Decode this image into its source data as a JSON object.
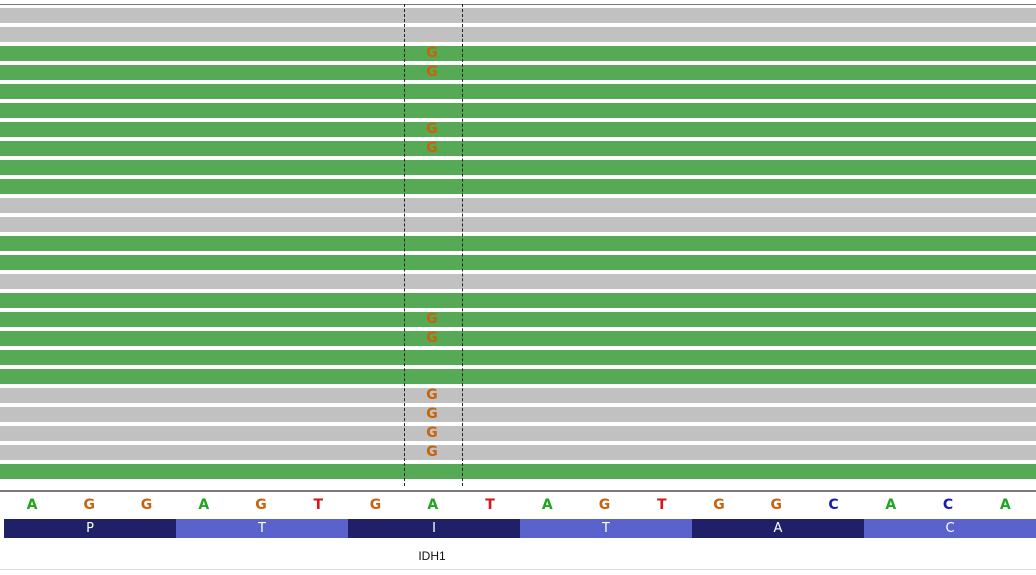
{
  "colors": {
    "read_gray": "#c1c1c1",
    "read_green": "#56aa56",
    "mismatch": "#c8620b",
    "base_A": "#1fa61f",
    "base_G": "#c8620b",
    "base_T": "#d01818",
    "base_C": "#1c1caa",
    "codon_dark": "#202068",
    "codon_light": "#5a62cc"
  },
  "reads": [
    {
      "color": "gray"
    },
    {
      "color": "gray"
    },
    {
      "color": "green",
      "mismatch": "G"
    },
    {
      "color": "green",
      "mismatch": "G"
    },
    {
      "color": "green"
    },
    {
      "color": "green"
    },
    {
      "color": "green",
      "mismatch": "G"
    },
    {
      "color": "green",
      "mismatch": "G"
    },
    {
      "color": "green"
    },
    {
      "color": "green"
    },
    {
      "color": "gray"
    },
    {
      "color": "gray"
    },
    {
      "color": "green"
    },
    {
      "color": "green"
    },
    {
      "color": "gray"
    },
    {
      "color": "green"
    },
    {
      "color": "green",
      "mismatch": "G"
    },
    {
      "color": "green",
      "mismatch": "G"
    },
    {
      "color": "green"
    },
    {
      "color": "green"
    },
    {
      "color": "gray",
      "mismatch": "G"
    },
    {
      "color": "gray",
      "mismatch": "G"
    },
    {
      "color": "gray",
      "mismatch": "G"
    },
    {
      "color": "gray",
      "mismatch": "G"
    },
    {
      "color": "green"
    }
  ],
  "sequence": [
    "A",
    "G",
    "G",
    "A",
    "G",
    "T",
    "G",
    "A",
    "T",
    "A",
    "G",
    "T",
    "G",
    "G",
    "C",
    "A",
    "C",
    "A"
  ],
  "translation": [
    {
      "aa": "P",
      "shade": "dark"
    },
    {
      "aa": "T",
      "shade": "light"
    },
    {
      "aa": "I",
      "shade": "dark"
    },
    {
      "aa": "T",
      "shade": "light"
    },
    {
      "aa": "A",
      "shade": "dark"
    },
    {
      "aa": "C",
      "shade": "light"
    }
  ],
  "gene": {
    "name": "IDH1"
  }
}
